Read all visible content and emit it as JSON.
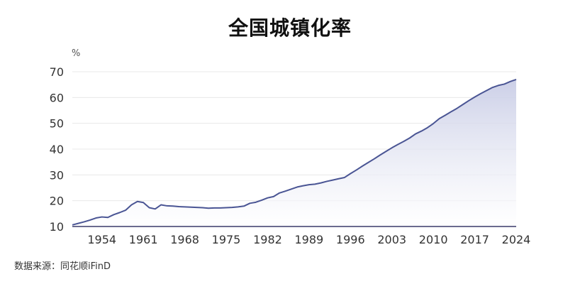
{
  "chart_data": {
    "type": "area",
    "title": "全国城镇化率",
    "ylabel": "%",
    "xlabel": "",
    "ylim": [
      10,
      70
    ],
    "xlim": [
      1949,
      2024
    ],
    "yticks": [
      10,
      20,
      30,
      40,
      50,
      60,
      70
    ],
    "xticks": [
      1954,
      1961,
      1968,
      1975,
      1982,
      1989,
      1996,
      2003,
      2010,
      2017,
      2024
    ],
    "grid": true,
    "colors": {
      "line": "#4a5594",
      "fill_top": "#c9cde6",
      "fill_bottom": "#ffffff",
      "grid": "#e8e8e8",
      "axis": "#3a3a6a"
    },
    "series": [
      {
        "x": [
          1949,
          1950,
          1951,
          1952,
          1953,
          1954,
          1955,
          1956,
          1957,
          1958,
          1959,
          1960,
          1961,
          1962,
          1963,
          1964,
          1965,
          1966,
          1967,
          1968,
          1969,
          1970,
          1971,
          1972,
          1973,
          1974,
          1975,
          1976,
          1977,
          1978,
          1979,
          1980,
          1981,
          1982,
          1983,
          1984,
          1985,
          1986,
          1987,
          1988,
          1989,
          1990,
          1991,
          1992,
          1993,
          1994,
          1995,
          1996,
          1997,
          1998,
          1999,
          2000,
          2001,
          2002,
          2003,
          2004,
          2005,
          2006,
          2007,
          2008,
          2009,
          2010,
          2011,
          2012,
          2013,
          2014,
          2015,
          2016,
          2017,
          2018,
          2019,
          2020,
          2021,
          2022,
          2023,
          2024
        ],
        "values": [
          10.6,
          11.2,
          11.8,
          12.5,
          13.3,
          13.7,
          13.5,
          14.6,
          15.4,
          16.3,
          18.4,
          19.7,
          19.3,
          17.3,
          16.8,
          18.4,
          18.0,
          17.9,
          17.7,
          17.6,
          17.5,
          17.4,
          17.3,
          17.1,
          17.2,
          17.2,
          17.3,
          17.4,
          17.6,
          17.9,
          19.0,
          19.4,
          20.2,
          21.1,
          21.6,
          23.0,
          23.7,
          24.5,
          25.3,
          25.8,
          26.2,
          26.4,
          26.9,
          27.5,
          28.0,
          28.5,
          29.0,
          30.5,
          31.9,
          33.4,
          34.8,
          36.2,
          37.7,
          39.1,
          40.5,
          41.8,
          43.0,
          44.3,
          45.9,
          47.0,
          48.3,
          49.9,
          51.8,
          53.1,
          54.5,
          55.8,
          57.3,
          58.8,
          60.2,
          61.5,
          62.7,
          63.9,
          64.7,
          65.2,
          66.2,
          67.0
        ]
      }
    ],
    "source": "数据来源：同花顺iFinD"
  }
}
